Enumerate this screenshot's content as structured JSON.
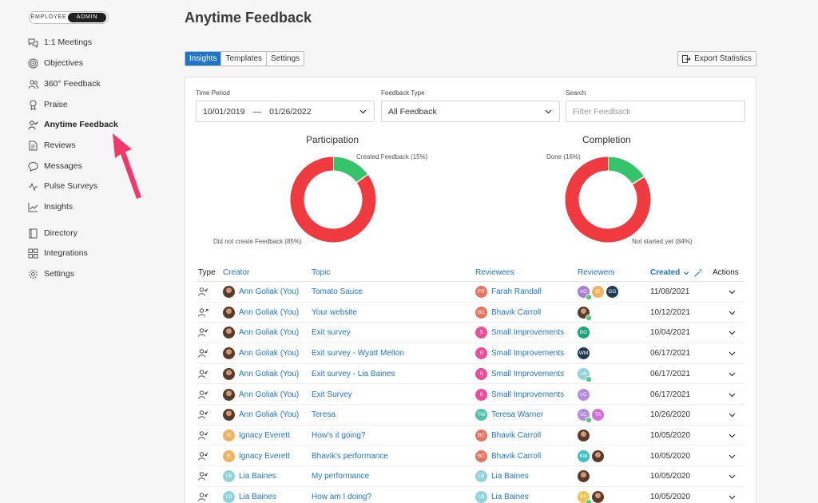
{
  "sidebar": {
    "role_toggle": [
      "EMPLOYEE",
      "ADMIN"
    ],
    "items": [
      {
        "label": "1:1 Meetings",
        "icon": "chat-bubbles-icon"
      },
      {
        "label": "Objectives",
        "icon": "target-icon"
      },
      {
        "label": "360° Feedback",
        "icon": "people-icon"
      },
      {
        "label": "Praise",
        "icon": "ribbon-icon"
      },
      {
        "label": "Anytime Feedback",
        "icon": "person-check-icon",
        "active": true
      },
      {
        "label": "Reviews",
        "icon": "document-icon"
      },
      {
        "label": "Messages",
        "icon": "message-bubble-icon"
      },
      {
        "label": "Pulse Surveys",
        "icon": "pulse-icon"
      },
      {
        "label": "Insights",
        "icon": "line-chart-icon"
      },
      {
        "label": "Directory",
        "icon": "book-icon"
      },
      {
        "label": "Integrations",
        "icon": "grid-icon"
      },
      {
        "label": "Settings",
        "icon": "gear-icon"
      }
    ]
  },
  "header": {
    "title": "Anytime Feedback"
  },
  "tabs": [
    "Insights",
    "Templates",
    "Settings"
  ],
  "export_label": "Export Statistics",
  "filters": {
    "time_period_label": "Time Period",
    "date_from": "10/01/2019",
    "date_sep": "—",
    "date_to": "01/26/2022",
    "feedback_type_label": "Feedback Type",
    "feedback_type_value": "All Feedback",
    "search_label": "Search",
    "search_placeholder": "Filter Feedback"
  },
  "charts": {
    "participation": {
      "title": "Participation",
      "labels": [
        "Created Feedback (15%)",
        "Did not create Feedback (85%)"
      ]
    },
    "completion": {
      "title": "Completion",
      "labels": [
        "Done (16%)",
        "Not started yet (84%)"
      ]
    }
  },
  "chart_data": [
    {
      "type": "pie",
      "title": "Participation",
      "categories": [
        "Created Feedback",
        "Did not create Feedback"
      ],
      "values": [
        15,
        85
      ],
      "colors": [
        "#35c46a",
        "#ef3b3f"
      ]
    },
    {
      "type": "pie",
      "title": "Completion",
      "categories": [
        "Done",
        "Not started yet"
      ],
      "values": [
        16,
        84
      ],
      "colors": [
        "#35c46a",
        "#ef3b3f"
      ]
    }
  ],
  "table": {
    "columns": {
      "type": "Type",
      "creator": "Creator",
      "topic": "Topic",
      "reviewees": "Reviewees",
      "reviewers": "Reviewers",
      "created": "Created",
      "actions": "Actions"
    },
    "rows": [
      {
        "type": "received",
        "creator": {
          "name": "Ann Goliak (You)",
          "photo": true
        },
        "topic": "Tomato Sauce",
        "reviewee": {
          "name": "Farah Randall",
          "initials": "FR",
          "color": "#e8735f"
        },
        "reviewers": [
          {
            "initials": "AG",
            "color": "#a97bd6",
            "check": true
          },
          {
            "initials": "IE",
            "color": "#f4b25c"
          },
          {
            "initials": "GG",
            "color": "#1f3a52"
          }
        ],
        "date": "11/08/2021"
      },
      {
        "type": "sent",
        "creator": {
          "name": "Ann Goliak (You)",
          "photo": true
        },
        "topic": "Your website",
        "reviewee": {
          "name": "Bhavik Carroll",
          "initials": "BC",
          "color": "#e8735f"
        },
        "reviewers": [
          {
            "photo": true,
            "check": true
          }
        ],
        "date": "10/12/2021"
      },
      {
        "type": "received",
        "creator": {
          "name": "Ann Goliak (You)",
          "photo": true
        },
        "topic": "Exit survey",
        "reviewee": {
          "name": "Small Improvements",
          "initials": "S",
          "color": "#ec4f9a"
        },
        "reviewers": [
          {
            "initials": "BG",
            "color": "#1aa37a"
          }
        ],
        "date": "10/04/2021"
      },
      {
        "type": "received",
        "creator": {
          "name": "Ann Goliak (You)",
          "photo": true
        },
        "topic": "Exit survey - Wyatt Melton",
        "reviewee": {
          "name": "Small Improvements",
          "initials": "S",
          "color": "#ec4f9a"
        },
        "reviewers": [
          {
            "initials": "WM",
            "color": "#1f3a52"
          }
        ],
        "date": "06/17/2021"
      },
      {
        "type": "received",
        "creator": {
          "name": "Ann Goliak (You)",
          "photo": true
        },
        "topic": "Exit survey - Lia Baines",
        "reviewee": {
          "name": "Small Improvements",
          "initials": "S",
          "color": "#ec4f9a"
        },
        "reviewers": [
          {
            "initials": "LB",
            "color": "#8fd4d8",
            "check": true
          }
        ],
        "date": "06/17/2021"
      },
      {
        "type": "received",
        "creator": {
          "name": "Ann Goliak (You)",
          "photo": true
        },
        "topic": "Exit Survey",
        "reviewee": {
          "name": "Small Improvements",
          "initials": "S",
          "color": "#ec4f9a"
        },
        "reviewers": [
          {
            "initials": "LC",
            "color": "#b48ce0"
          }
        ],
        "date": "06/17/2021"
      },
      {
        "type": "received",
        "creator": {
          "name": "Ann Goliak (You)",
          "photo": true
        },
        "topic": "Teresa",
        "reviewee": {
          "name": "Teresa Warner",
          "initials": "TW",
          "color": "#4fc4a8"
        },
        "reviewers": [
          {
            "initials": "LC",
            "color": "#b48ce0",
            "check": true
          },
          {
            "initials": "TA",
            "color": "#d46fd6"
          }
        ],
        "date": "10/26/2020"
      },
      {
        "type": "received",
        "creator": {
          "name": "Ignacy Everett",
          "initials": "IE",
          "color": "#f4b25c"
        },
        "topic": "How's it going?",
        "reviewee": {
          "name": "Bhavik Carroll",
          "initials": "BC",
          "color": "#e8735f"
        },
        "reviewers": [
          {
            "photo": true
          }
        ],
        "date": "10/05/2020"
      },
      {
        "type": "received",
        "creator": {
          "name": "Ignacy Everett",
          "initials": "IE",
          "color": "#f4b25c"
        },
        "topic": "Bhavik's performance",
        "reviewee": {
          "name": "Bhavik Carroll",
          "initials": "BC",
          "color": "#e8735f"
        },
        "reviewers": [
          {
            "initials": "KM",
            "color": "#3fc0c0"
          },
          {
            "photo": true
          }
        ],
        "date": "10/05/2020"
      },
      {
        "type": "received",
        "creator": {
          "name": "Lia Baines",
          "initials": "LB",
          "color": "#8fd4d8"
        },
        "topic": "My performance",
        "reviewee": {
          "name": "Lia Baines",
          "initials": "LB",
          "color": "#8fd4d8"
        },
        "reviewers": [
          {
            "photo": true
          }
        ],
        "date": "10/05/2020"
      },
      {
        "type": "received",
        "creator": {
          "name": "Lia Baines",
          "initials": "LB",
          "color": "#8fd4d8"
        },
        "topic": "How am I doing?",
        "reviewee": {
          "name": "Lia Baines",
          "initials": "LB",
          "color": "#8fd4d8"
        },
        "reviewers": [
          {
            "initials": "RF",
            "color": "#f4c24c",
            "check": true
          },
          {
            "photo": true
          }
        ],
        "date": "10/05/2020"
      }
    ]
  },
  "colors": {
    "accent": "#1e76c9",
    "green": "#35c46a",
    "red": "#ef3b3f",
    "arrow": "#f0386b"
  }
}
